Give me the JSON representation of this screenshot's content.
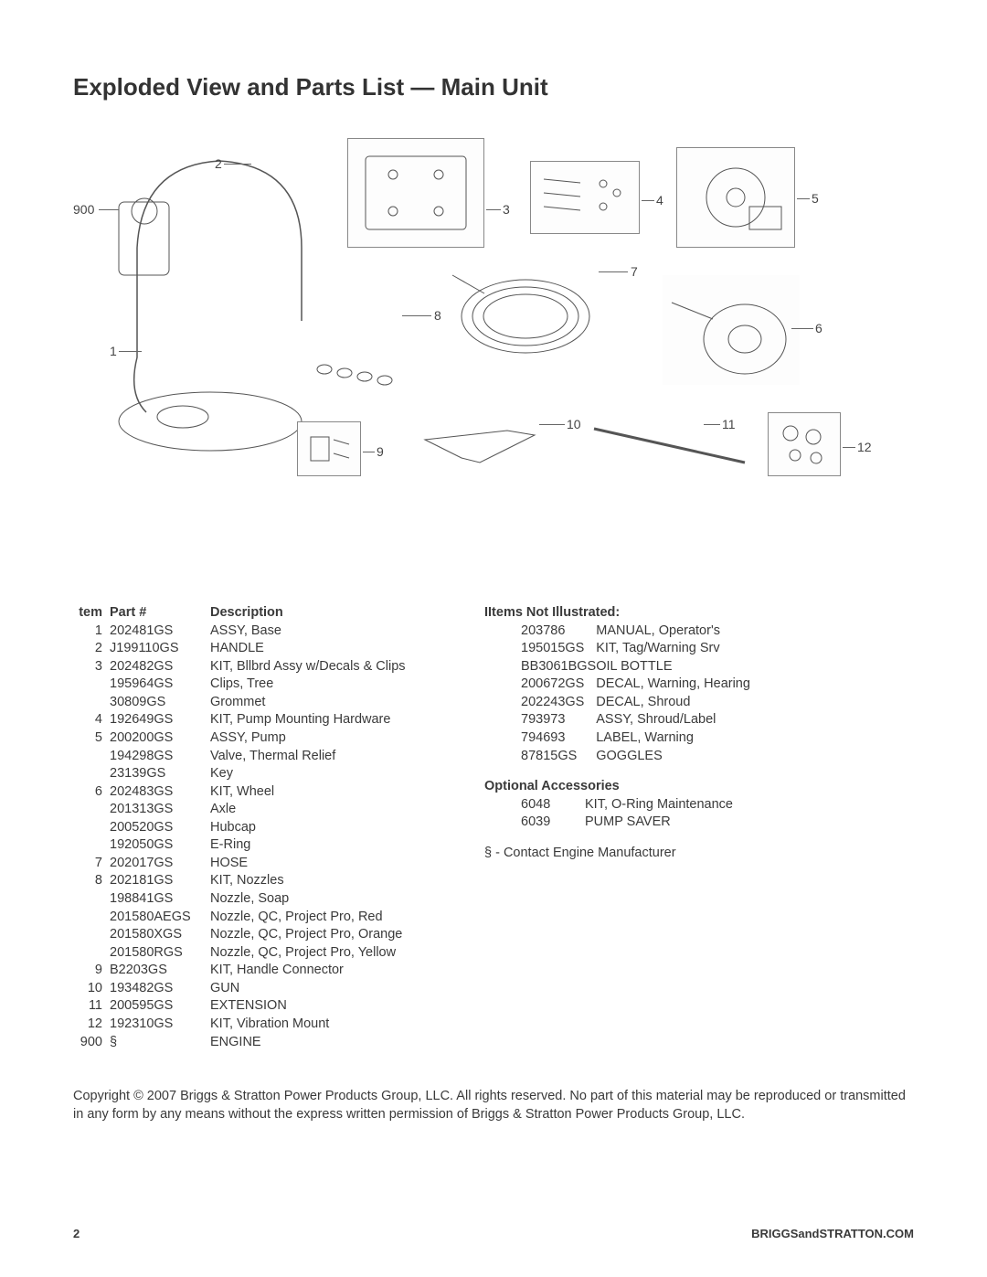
{
  "title": "Exploded View and Parts List — Main Unit",
  "diagram": {
    "callouts": [
      "1",
      "2",
      "3",
      "4",
      "5",
      "6",
      "7",
      "8",
      "9",
      "10",
      "11",
      "12",
      "900"
    ]
  },
  "parts_table": {
    "headers": {
      "item": "tem",
      "part": "Part #",
      "desc": "Description"
    },
    "rows": [
      {
        "item": "1",
        "part": "202481GS",
        "desc": "ASSY, Base"
      },
      {
        "item": "2",
        "part": "J199110GS",
        "desc": "HANDLE"
      },
      {
        "item": "3",
        "part": "202482GS",
        "desc": "KIT,  Bllbrd Assy w/Decals & Clips"
      },
      {
        "item": "",
        "part": "195964GS",
        "desc": "Clips, Tree"
      },
      {
        "item": "",
        "part": "30809GS",
        "desc": "Grommet"
      },
      {
        "item": "4",
        "part": "192649GS",
        "desc": "KIT, Pump Mounting Hardware"
      },
      {
        "item": "5",
        "part": "200200GS",
        "desc": "ASSY, Pump"
      },
      {
        "item": "",
        "part": "194298GS",
        "desc": "Valve, Thermal Relief"
      },
      {
        "item": "",
        "part": "23139GS",
        "desc": "Key"
      },
      {
        "item": "6",
        "part": "202483GS",
        "desc": "KIT, Wheel"
      },
      {
        "item": "",
        "part": "201313GS",
        "desc": "Axle"
      },
      {
        "item": "",
        "part": "200520GS",
        "desc": "Hubcap"
      },
      {
        "item": "",
        "part": "192050GS",
        "desc": "E-Ring"
      },
      {
        "item": "7",
        "part": "202017GS",
        "desc": "HOSE"
      },
      {
        "item": "8",
        "part": "202181GS",
        "desc": "KIT, Nozzles"
      },
      {
        "item": "",
        "part": "198841GS",
        "desc": "Nozzle, Soap"
      },
      {
        "item": "",
        "part": "201580AEGS",
        "desc": "Nozzle, QC, Project Pro, Red"
      },
      {
        "item": "",
        "part": "201580XGS",
        "desc": "Nozzle, QC, Project Pro, Orange"
      },
      {
        "item": "",
        "part": "201580RGS",
        "desc": "Nozzle, QC, Project Pro, Yellow"
      },
      {
        "item": "9",
        "part": "B2203GS",
        "desc": "KIT, Handle Connector"
      },
      {
        "item": "10",
        "part": "193482GS",
        "desc": "GUN"
      },
      {
        "item": "11",
        "part": "200595GS",
        "desc": "EXTENSION"
      },
      {
        "item": "12",
        "part": "192310GS",
        "desc": "KIT, Vibration Mount"
      },
      {
        "item": "900",
        "part": "§",
        "desc": "ENGINE"
      }
    ]
  },
  "not_illustrated": {
    "header": "IItems Not Illustrated:",
    "rows": [
      {
        "part": "203786",
        "desc": "MANUAL, Operator's"
      },
      {
        "part": "195015GS",
        "desc": "KIT, Tag/Warning Srv"
      },
      {
        "part": "BB3061BGS",
        "desc": "OIL BOTTLE"
      },
      {
        "part": "200672GS",
        "desc": "DECAL, Warning, Hearing"
      },
      {
        "part": "202243GS",
        "desc": "DECAL, Shroud"
      },
      {
        "part": "793973",
        "desc": "ASSY, Shroud/Label"
      },
      {
        "part": "794693",
        "desc": "LABEL, Warning"
      },
      {
        "part": "87815GS",
        "desc": "GOGGLES"
      }
    ]
  },
  "optional": {
    "header": "Optional Accessories",
    "rows": [
      {
        "part": "6048",
        "desc": "KIT, O-Ring Maintenance"
      },
      {
        "part": "6039",
        "desc": "PUMP SAVER"
      }
    ]
  },
  "engine_note": "§ - Contact Engine Manufacturer",
  "copyright": "Copyright © 2007 Briggs & Stratton Power Products Group, LLC.  All rights reserved.  No part of this material may be reproduced or transmitted in any form by any means without the express written permission of Briggs & Stratton Power Products Group, LLC.",
  "footer": {
    "page": "2",
    "url": "BRIGGSandSTRATTON.COM"
  },
  "style": {
    "body_font_size": 14.5,
    "title_font_size": 26,
    "text_color": "#3a3a3a",
    "background": "#ffffff"
  }
}
